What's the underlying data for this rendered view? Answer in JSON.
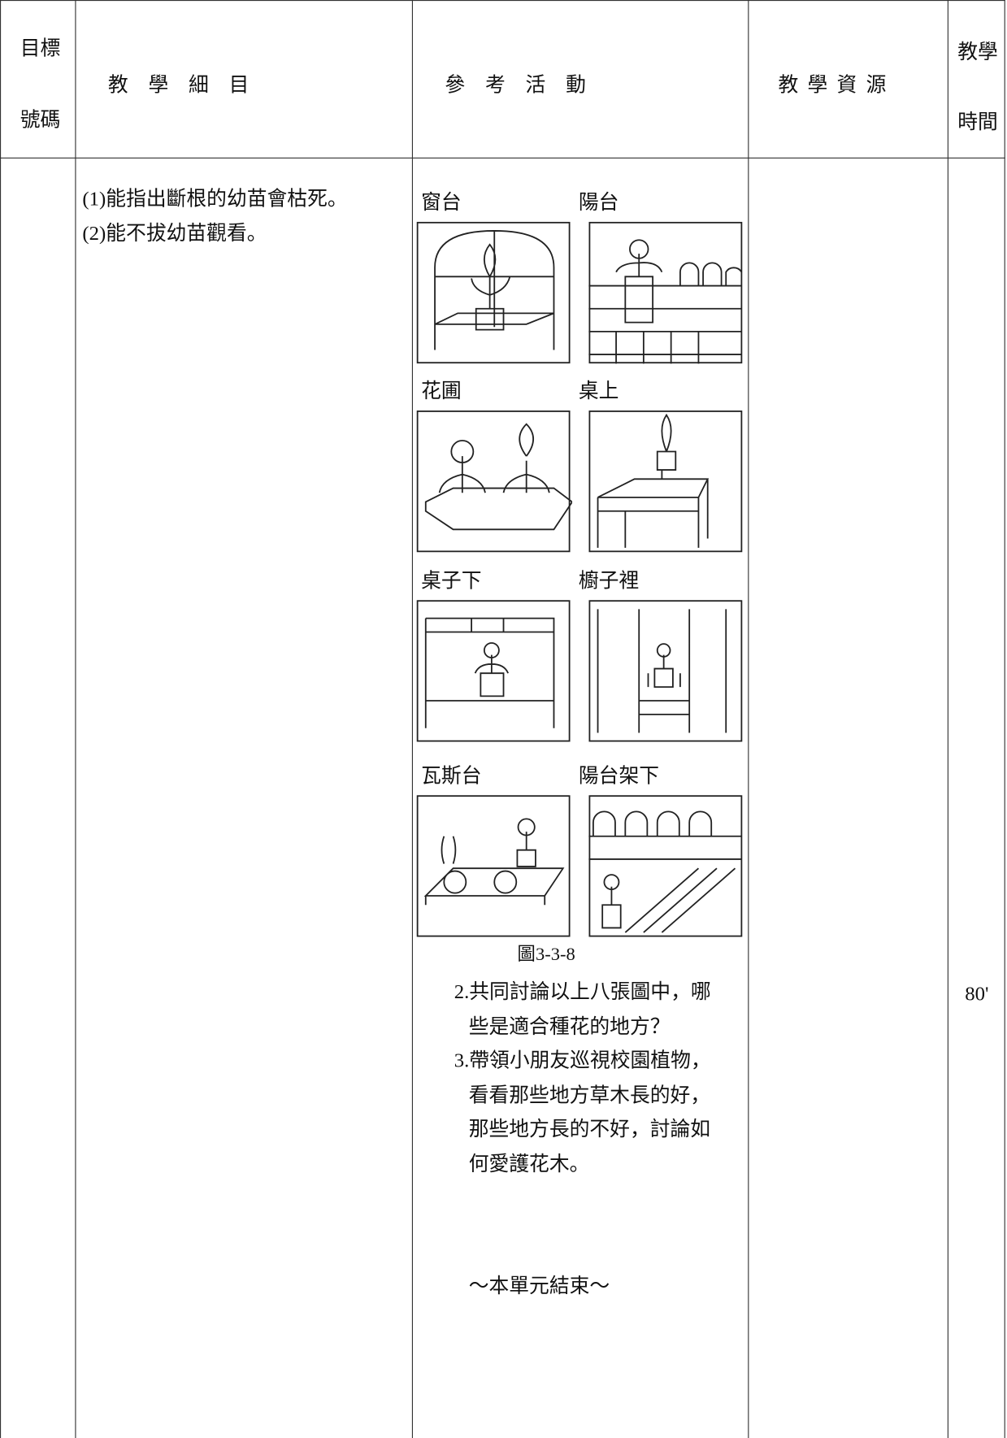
{
  "header": {
    "code": [
      "目標",
      "號碼"
    ],
    "detail": "教學細目",
    "activity": "參考活動",
    "resource": "教學資源",
    "time": [
      "教學",
      "時間"
    ]
  },
  "row": {
    "details": [
      "(1)能指出斷根的幼苗會枯死。",
      "(2)能不拔幼苗觀看。"
    ],
    "pictures": [
      "窗台",
      "陽台",
      "花圃",
      "桌上",
      "桌子下",
      "櫥子裡",
      "瓦斯台",
      "陽台架下"
    ],
    "caption": "圖3-3-8",
    "activities": [
      [
        "2.共同討論以上八張圖中，哪",
        "些是適合種花的地方？"
      ],
      [
        "3.帶領小朋友巡視校園植物，",
        "看看那些地方草木長的好，",
        "那些地方長的不好，討論如",
        "何愛護花木。"
      ]
    ],
    "closing": "～本單元結束～",
    "time": "80'"
  }
}
